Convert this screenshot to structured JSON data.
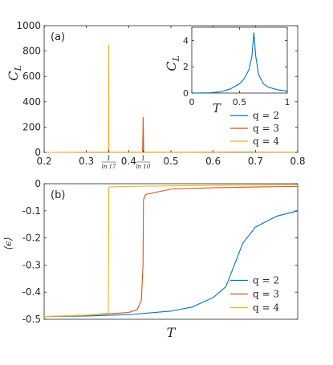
{
  "chart_data": [
    {
      "type": "line",
      "panel_label": "(a)",
      "xlabel": "",
      "ylabel": "C",
      "ylabel_sub": "L",
      "xlim": [
        0.2,
        0.8
      ],
      "ylim": [
        0,
        1000
      ],
      "x_ticks": [
        0.2,
        0.3,
        0.4,
        0.5,
        0.6,
        0.7,
        0.8
      ],
      "x_tick_labels": [
        "0.2",
        "0.3",
        "0.4",
        "0.5",
        "0.6",
        "0.7",
        "0.8"
      ],
      "special_ticks": [
        {
          "x": 0.35297,
          "num": "1",
          "den": "ln 17"
        },
        {
          "x": 0.43429,
          "num": "1",
          "den": "ln 10"
        }
      ],
      "y_ticks": [
        0,
        200,
        400,
        600,
        800,
        1000
      ],
      "y_tick_labels": [
        "0",
        "200",
        "400",
        "600",
        "800",
        "1000"
      ],
      "grid": false,
      "legend_position": "lower-right",
      "series": [
        {
          "name": "q = 2",
          "color": "#0072BD",
          "x": [
            0.2,
            0.5,
            0.6,
            0.65,
            0.69,
            0.72,
            0.8
          ],
          "y": [
            0,
            0.5,
            1.5,
            3,
            2.5,
            1.5,
            0.5
          ]
        },
        {
          "name": "q = 3",
          "color": "#D95319",
          "x": [
            0.2,
            0.43,
            0.433,
            0.4343,
            0.4355,
            0.44,
            0.8
          ],
          "y": [
            0,
            0.8,
            5,
            280,
            5,
            0.5,
            0
          ]
        },
        {
          "name": "q = 4",
          "color": "#EDB120",
          "x": [
            0.2,
            0.351,
            0.3525,
            0.353,
            0.3535,
            0.355,
            0.8
          ],
          "y": [
            0,
            0.8,
            5,
            850,
            5,
            0.5,
            0
          ]
        }
      ]
    },
    {
      "type": "line",
      "inset": true,
      "xlabel": "T",
      "ylabel": "C",
      "ylabel_sub": "L",
      "xlim": [
        0,
        1
      ],
      "ylim": [
        0,
        5
      ],
      "x_ticks": [
        0,
        0.5,
        1
      ],
      "x_tick_labels": [
        "0",
        "0.5",
        "1"
      ],
      "y_ticks": [
        0,
        2,
        4
      ],
      "y_tick_labels": [
        "0",
        "2",
        "4"
      ],
      "series": [
        {
          "name": "q = 2",
          "color": "#0072BD",
          "x": [
            0,
            0.2,
            0.3,
            0.4,
            0.5,
            0.55,
            0.6,
            0.63,
            0.65,
            0.67,
            0.7,
            0.75,
            0.8,
            0.9,
            1.0
          ],
          "y": [
            0,
            0.02,
            0.1,
            0.3,
            0.7,
            1.1,
            1.8,
            2.8,
            4.6,
            2.8,
            1.4,
            0.7,
            0.45,
            0.25,
            0.15
          ]
        }
      ]
    },
    {
      "type": "line",
      "panel_label": "(b)",
      "xlabel": "T",
      "ylabel": "⟨ϵ⟩",
      "xlim": [
        0.2,
        0.8
      ],
      "ylim": [
        -0.5,
        0
      ],
      "y_ticks": [
        0,
        -0.1,
        -0.2,
        -0.3,
        -0.4,
        -0.5
      ],
      "y_tick_labels": [
        "0",
        "-0.1",
        "-0.2",
        "-0.3",
        "-0.4",
        "-0.5"
      ],
      "grid": false,
      "legend_position": "lower-right",
      "series": [
        {
          "name": "q = 2",
          "color": "#0072BD",
          "x": [
            0.2,
            0.3,
            0.4,
            0.5,
            0.55,
            0.6,
            0.63,
            0.65,
            0.67,
            0.7,
            0.75,
            0.8
          ],
          "y": [
            -0.49,
            -0.488,
            -0.483,
            -0.47,
            -0.455,
            -0.42,
            -0.38,
            -0.3,
            -0.22,
            -0.16,
            -0.12,
            -0.1
          ]
        },
        {
          "name": "q = 3",
          "color": "#D95319",
          "x": [
            0.2,
            0.3,
            0.4,
            0.42,
            0.43,
            0.434,
            0.435,
            0.44,
            0.5,
            0.6,
            0.7,
            0.8
          ],
          "y": [
            -0.49,
            -0.485,
            -0.475,
            -0.465,
            -0.43,
            -0.3,
            -0.06,
            -0.04,
            -0.02,
            -0.015,
            -0.012,
            -0.01
          ]
        },
        {
          "name": "q = 4",
          "color": "#EDB120",
          "x": [
            0.2,
            0.3,
            0.35,
            0.352,
            0.353,
            0.355,
            0.4,
            0.5,
            0.6,
            0.8
          ],
          "y": [
            -0.49,
            -0.485,
            -0.478,
            -0.47,
            -0.015,
            -0.012,
            -0.01,
            -0.008,
            -0.006,
            -0.004
          ]
        }
      ]
    }
  ]
}
